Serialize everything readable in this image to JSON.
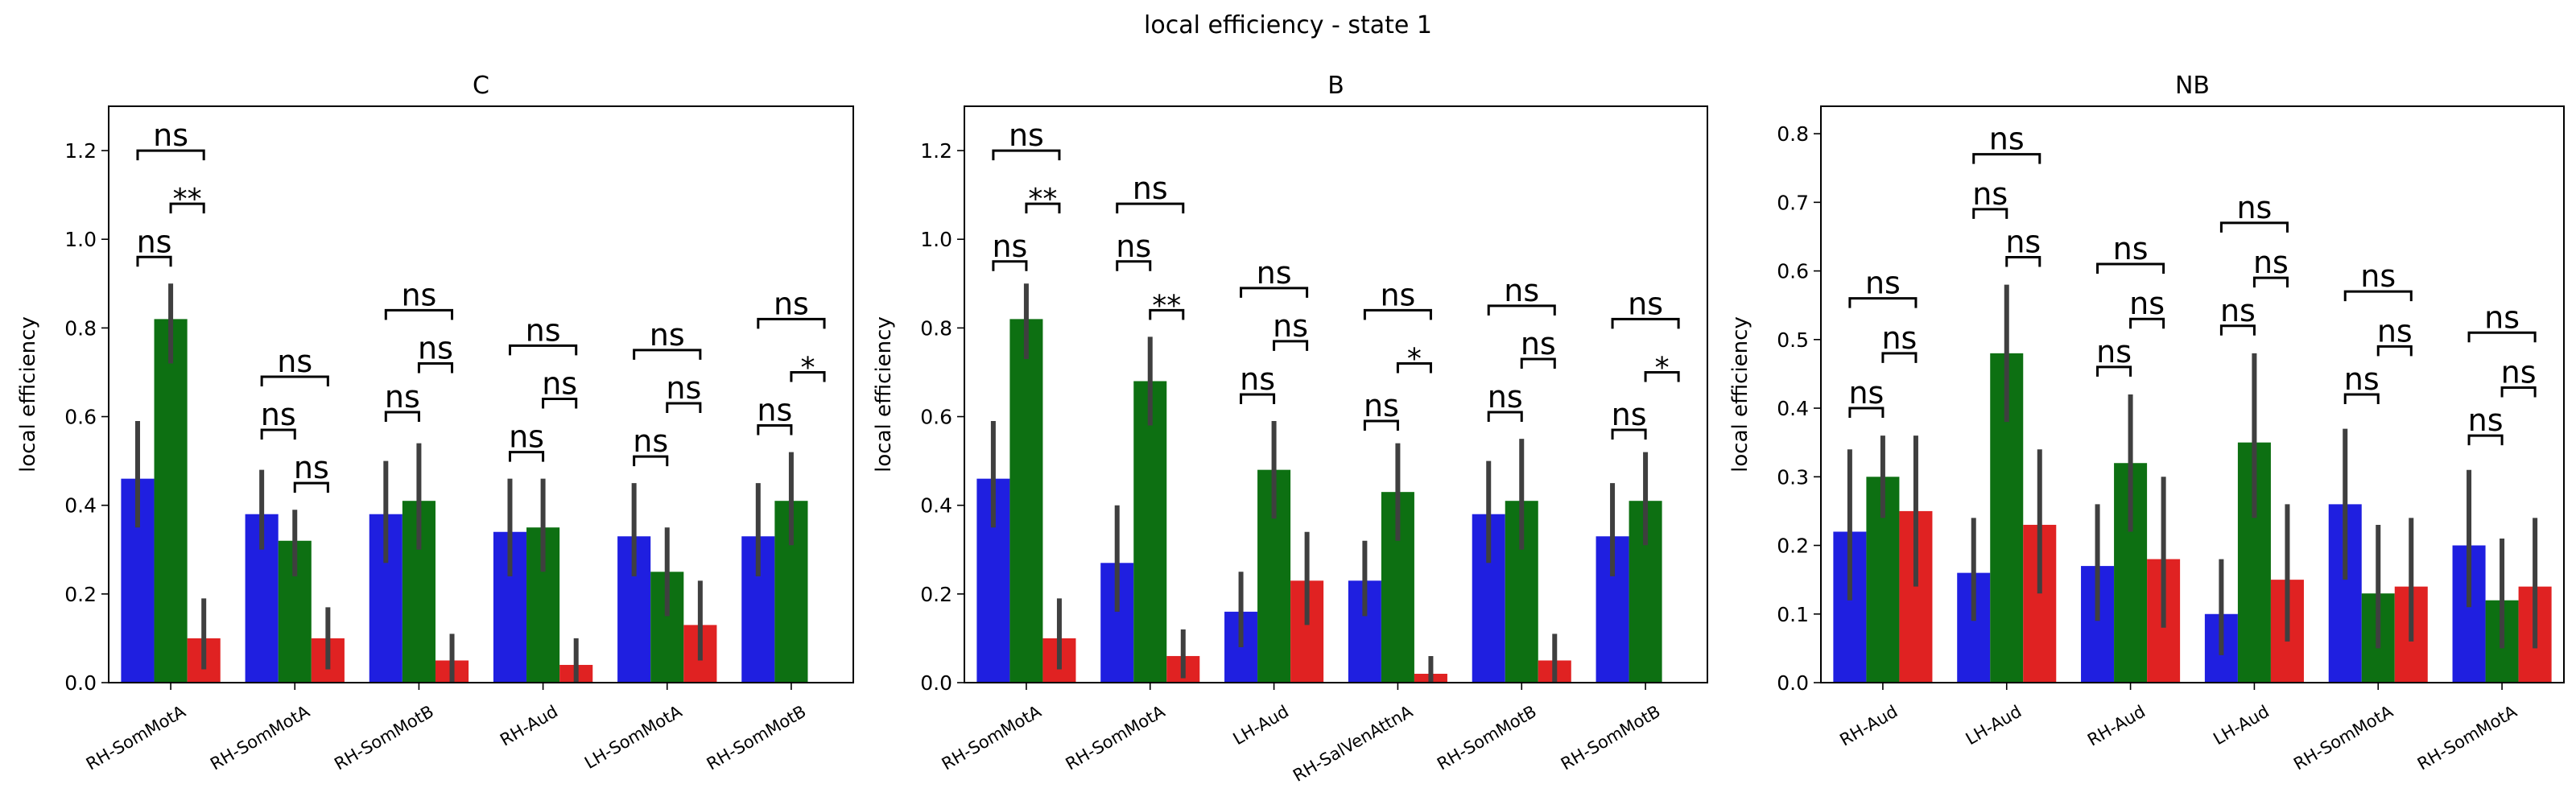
{
  "page_title": "local efficiency - state 1",
  "colors": {
    "group1": "#1f1fe0",
    "group2": "#0d7012",
    "group3": "#e02222",
    "error_bar": "#3f3f3f"
  },
  "chart_data": [
    {
      "type": "bar",
      "title": "C",
      "ylabel": "local efficiency",
      "ylim": [
        0,
        1.3
      ],
      "yticks": [
        0.0,
        0.2,
        0.4,
        0.6,
        0.8,
        1.0,
        1.2
      ],
      "ytick_labels": [
        "0.0",
        "0.2",
        "0.4",
        "0.6",
        "0.8",
        "1.0",
        "1.2"
      ],
      "categories": [
        "RH-SomMotA",
        "RH-SomMotA",
        "RH-SomMotB",
        "RH-Aud",
        "LH-SomMotA",
        "RH-SomMotB"
      ],
      "series": [
        {
          "values": [
            0.46,
            0.38,
            0.38,
            0.34,
            0.33,
            0.33
          ],
          "ci": [
            [
              0.35,
              0.59
            ],
            [
              0.3,
              0.48
            ],
            [
              0.27,
              0.5
            ],
            [
              0.24,
              0.46
            ],
            [
              0.24,
              0.45
            ],
            [
              0.24,
              0.45
            ]
          ]
        },
        {
          "values": [
            0.82,
            0.32,
            0.41,
            0.35,
            0.25,
            0.41
          ],
          "ci": [
            [
              0.72,
              0.9
            ],
            [
              0.24,
              0.39
            ],
            [
              0.3,
              0.54
            ],
            [
              0.25,
              0.46
            ],
            [
              0.15,
              0.35
            ],
            [
              0.31,
              0.52
            ]
          ]
        },
        {
          "values": [
            0.1,
            0.1,
            0.05,
            0.04,
            0.13,
            null
          ],
          "ci": [
            [
              0.03,
              0.19
            ],
            [
              0.03,
              0.17
            ],
            [
              0.0,
              0.11
            ],
            [
              0.0,
              0.1
            ],
            [
              0.05,
              0.23
            ],
            null
          ]
        }
      ],
      "annotations": [
        {
          "category": 0,
          "pairs": [
            [
              "0",
              "1",
              "ns",
              0.96
            ],
            [
              "1",
              "2",
              "**",
              1.08
            ],
            [
              "0",
              "2",
              "ns",
              1.2
            ]
          ]
        },
        {
          "category": 1,
          "pairs": [
            [
              "0",
              "1",
              "ns",
              0.57
            ],
            [
              "1",
              "2",
              "ns",
              0.45
            ],
            [
              "0",
              "2",
              "ns",
              0.69
            ]
          ]
        },
        {
          "category": 2,
          "pairs": [
            [
              "0",
              "1",
              "ns",
              0.61
            ],
            [
              "1",
              "2",
              "ns",
              0.72
            ],
            [
              "0",
              "2",
              "ns",
              0.84
            ]
          ]
        },
        {
          "category": 3,
          "pairs": [
            [
              "0",
              "1",
              "ns",
              0.52
            ],
            [
              "1",
              "2",
              "ns",
              0.64
            ],
            [
              "0",
              "2",
              "ns",
              0.76
            ]
          ]
        },
        {
          "category": 4,
          "pairs": [
            [
              "0",
              "1",
              "ns",
              0.51
            ],
            [
              "1",
              "2",
              "ns",
              0.63
            ],
            [
              "0",
              "2",
              "ns",
              0.75
            ]
          ]
        },
        {
          "category": 5,
          "pairs": [
            [
              "0",
              "1",
              "ns",
              0.58
            ],
            [
              "1",
              "2",
              "*",
              0.7
            ],
            [
              "0",
              "2",
              "ns",
              0.82
            ]
          ]
        }
      ]
    },
    {
      "type": "bar",
      "title": "B",
      "ylabel": "local efficiency",
      "ylim": [
        0,
        1.3
      ],
      "yticks": [
        0.0,
        0.2,
        0.4,
        0.6,
        0.8,
        1.0,
        1.2
      ],
      "ytick_labels": [
        "0.0",
        "0.2",
        "0.4",
        "0.6",
        "0.8",
        "1.0",
        "1.2"
      ],
      "categories": [
        "RH-SomMotA",
        "RH-SomMotA",
        "LH-Aud",
        "RH-SalVenAttnA",
        "RH-SomMotB",
        "RH-SomMotB"
      ],
      "series": [
        {
          "values": [
            0.46,
            0.27,
            0.16,
            0.23,
            0.38,
            0.33
          ],
          "ci": [
            [
              0.35,
              0.59
            ],
            [
              0.16,
              0.4
            ],
            [
              0.08,
              0.25
            ],
            [
              0.15,
              0.32
            ],
            [
              0.27,
              0.5
            ],
            [
              0.24,
              0.45
            ]
          ]
        },
        {
          "values": [
            0.82,
            0.68,
            0.48,
            0.43,
            0.41,
            0.41
          ],
          "ci": [
            [
              0.73,
              0.9
            ],
            [
              0.58,
              0.78
            ],
            [
              0.37,
              0.59
            ],
            [
              0.32,
              0.54
            ],
            [
              0.3,
              0.55
            ],
            [
              0.31,
              0.52
            ]
          ]
        },
        {
          "values": [
            0.1,
            0.06,
            0.23,
            0.02,
            0.05,
            null
          ],
          "ci": [
            [
              0.03,
              0.19
            ],
            [
              0.01,
              0.12
            ],
            [
              0.13,
              0.34
            ],
            [
              0.0,
              0.06
            ],
            [
              0.0,
              0.11
            ],
            null
          ]
        }
      ],
      "annotations": [
        {
          "category": 0,
          "pairs": [
            [
              "0",
              "1",
              "ns",
              0.95
            ],
            [
              "1",
              "2",
              "**",
              1.08
            ],
            [
              "0",
              "2",
              "ns",
              1.2
            ]
          ]
        },
        {
          "category": 1,
          "pairs": [
            [
              "0",
              "1",
              "ns",
              0.95
            ],
            [
              "1",
              "2",
              "**",
              0.84
            ],
            [
              "0",
              "2",
              "ns",
              1.08
            ]
          ]
        },
        {
          "category": 2,
          "pairs": [
            [
              "0",
              "1",
              "ns",
              0.65
            ],
            [
              "1",
              "2",
              "ns",
              0.77
            ],
            [
              "0",
              "2",
              "ns",
              0.89
            ]
          ]
        },
        {
          "category": 3,
          "pairs": [
            [
              "0",
              "1",
              "ns",
              0.59
            ],
            [
              "1",
              "2",
              "*",
              0.72
            ],
            [
              "0",
              "2",
              "ns",
              0.84
            ]
          ]
        },
        {
          "category": 4,
          "pairs": [
            [
              "0",
              "1",
              "ns",
              0.61
            ],
            [
              "1",
              "2",
              "ns",
              0.73
            ],
            [
              "0",
              "2",
              "ns",
              0.85
            ]
          ]
        },
        {
          "category": 5,
          "pairs": [
            [
              "0",
              "1",
              "ns",
              0.57
            ],
            [
              "1",
              "2",
              "*",
              0.7
            ],
            [
              "0",
              "2",
              "ns",
              0.82
            ]
          ]
        }
      ]
    },
    {
      "type": "bar",
      "title": "NB",
      "ylabel": "local efficiency",
      "ylim": [
        0,
        0.84
      ],
      "yticks": [
        0.0,
        0.1,
        0.2,
        0.3,
        0.4,
        0.5,
        0.6,
        0.7,
        0.8
      ],
      "ytick_labels": [
        "0.0",
        "0.1",
        "0.2",
        "0.3",
        "0.4",
        "0.5",
        "0.6",
        "0.7",
        "0.8"
      ],
      "categories": [
        "RH-Aud",
        "LH-Aud",
        "RH-Aud",
        "LH-Aud",
        "RH-SomMotA",
        "RH-SomMotA"
      ],
      "series": [
        {
          "values": [
            0.22,
            0.16,
            0.17,
            0.1,
            0.26,
            0.2
          ],
          "ci": [
            [
              0.12,
              0.34
            ],
            [
              0.09,
              0.24
            ],
            [
              0.09,
              0.26
            ],
            [
              0.04,
              0.18
            ],
            [
              0.15,
              0.37
            ],
            [
              0.11,
              0.31
            ]
          ]
        },
        {
          "values": [
            0.3,
            0.48,
            0.32,
            0.35,
            0.13,
            0.12
          ],
          "ci": [
            [
              0.24,
              0.36
            ],
            [
              0.38,
              0.58
            ],
            [
              0.22,
              0.42
            ],
            [
              0.24,
              0.48
            ],
            [
              0.05,
              0.23
            ],
            [
              0.05,
              0.21
            ]
          ]
        },
        {
          "values": [
            0.25,
            0.23,
            0.18,
            0.15,
            0.14,
            0.14
          ],
          "ci": [
            [
              0.14,
              0.36
            ],
            [
              0.13,
              0.34
            ],
            [
              0.08,
              0.3
            ],
            [
              0.06,
              0.26
            ],
            [
              0.06,
              0.24
            ],
            [
              0.05,
              0.24
            ]
          ]
        }
      ],
      "annotations": [
        {
          "category": 0,
          "pairs": [
            [
              "0",
              "1",
              "ns",
              0.4
            ],
            [
              "1",
              "2",
              "ns",
              0.48
            ],
            [
              "0",
              "2",
              "ns",
              0.56
            ]
          ]
        },
        {
          "category": 1,
          "pairs": [
            [
              "0",
              "1",
              "ns",
              0.69
            ],
            [
              "1",
              "2",
              "ns",
              0.62
            ],
            [
              "0",
              "2",
              "ns",
              0.77
            ]
          ]
        },
        {
          "category": 2,
          "pairs": [
            [
              "0",
              "1",
              "ns",
              0.46
            ],
            [
              "1",
              "2",
              "ns",
              0.53
            ],
            [
              "0",
              "2",
              "ns",
              0.61
            ]
          ]
        },
        {
          "category": 3,
          "pairs": [
            [
              "0",
              "1",
              "ns",
              0.52
            ],
            [
              "1",
              "2",
              "ns",
              0.59
            ],
            [
              "0",
              "2",
              "ns",
              0.67
            ]
          ]
        },
        {
          "category": 4,
          "pairs": [
            [
              "0",
              "1",
              "ns",
              0.42
            ],
            [
              "1",
              "2",
              "ns",
              0.49
            ],
            [
              "0",
              "2",
              "ns",
              0.57
            ]
          ]
        },
        {
          "category": 5,
          "pairs": [
            [
              "0",
              "1",
              "ns",
              0.36
            ],
            [
              "1",
              "2",
              "ns",
              0.43
            ],
            [
              "0",
              "2",
              "ns",
              0.51
            ]
          ]
        }
      ]
    }
  ]
}
